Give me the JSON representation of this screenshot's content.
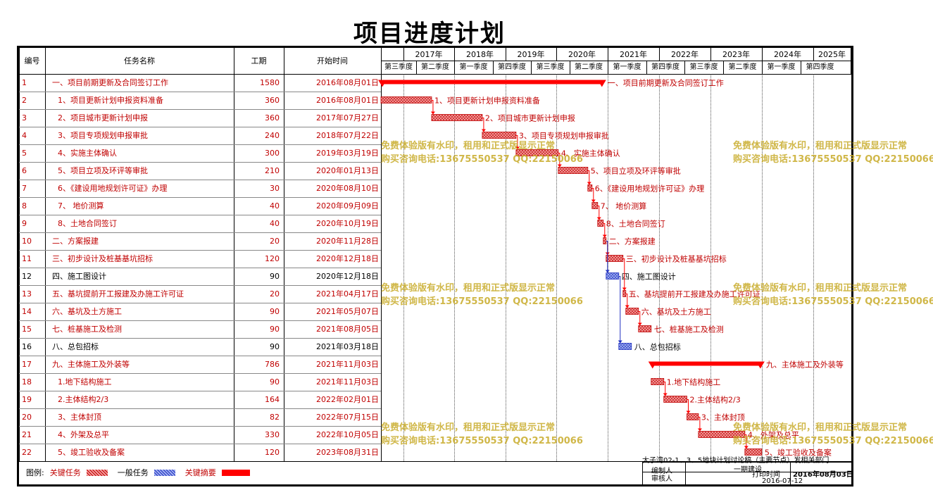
{
  "title": "项目进度计划",
  "headers": {
    "id": "编号",
    "name": "任务名称",
    "duration": "工期",
    "start": "开始时间"
  },
  "years": [
    "2017年",
    "2018年",
    "2019年",
    "2020年",
    "2021年",
    "2022年",
    "2023年",
    "2024年",
    "2025年"
  ],
  "quarters": [
    "第三季度",
    "第二季度",
    "第一季度",
    "第四季度",
    "第三季度",
    "第二季度",
    "第一季度",
    "第四季度",
    "第三季度",
    "第二季度",
    "第一季度",
    "第四季度"
  ],
  "tasks": [
    {
      "id": "1",
      "name": "一、项目前期更新及合同签订工作",
      "duration": "1580",
      "start": "2016年08月01日",
      "type": "summary",
      "bar_label": "一、项目前期更新及合同签订工作"
    },
    {
      "id": "2",
      "name": "1、项目更新计划申报资料准备",
      "duration": "360",
      "start": "2016年08月01日",
      "type": "critical",
      "bar_label": "1、项目更新计划申报资料准备"
    },
    {
      "id": "3",
      "name": "2、项目城市更新计划申报",
      "duration": "360",
      "start": "2017年07月27日",
      "type": "critical",
      "bar_label": "2、项目城市更新计划申报"
    },
    {
      "id": "4",
      "name": "3、项目专项规划申报审批",
      "duration": "240",
      "start": "2018年07月22日",
      "type": "critical",
      "bar_label": "3、项目专项规划申报审批"
    },
    {
      "id": "5",
      "name": "4、实施主体确认",
      "duration": "300",
      "start": "2019年03月19日",
      "type": "critical",
      "bar_label": "4、实施主体确认"
    },
    {
      "id": "6",
      "name": "5、项目立项及环评等审批",
      "duration": "210",
      "start": "2020年01月13日",
      "type": "critical",
      "bar_label": "5、项目立项及环评等审批"
    },
    {
      "id": "7",
      "name": "6、《建设用地规划许可证》办理",
      "duration": "30",
      "start": "2020年08月10日",
      "type": "critical",
      "bar_label": "6、《建设用地规划许可证》办理"
    },
    {
      "id": "8",
      "name": "7、  地价测算",
      "duration": "40",
      "start": "2020年09月09日",
      "type": "critical",
      "bar_label": "7、  地价测算"
    },
    {
      "id": "9",
      "name": "8、土地合同签订",
      "duration": "40",
      "start": "2020年10月19日",
      "type": "critical",
      "bar_label": "8、土地合同签订"
    },
    {
      "id": "10",
      "name": "二、方案报建",
      "duration": "20",
      "start": "2020年11月28日",
      "type": "critical",
      "bar_label": "二、方案报建"
    },
    {
      "id": "11",
      "name": "三、初步设计及桩基基坑招标",
      "duration": "120",
      "start": "2020年12月18日",
      "type": "critical",
      "bar_label": "三、初步设计及桩基基坑招标"
    },
    {
      "id": "12",
      "name": "四、施工图设计",
      "duration": "90",
      "start": "2020年12月18日",
      "type": "normal",
      "bar_label": "四、施工图设计"
    },
    {
      "id": "13",
      "name": "五、基坑提前开工报建及办施工许可证",
      "duration": "20",
      "start": "2021年04月17日",
      "type": "critical",
      "bar_label": "五、基坑提前开工报建及办施工许可证"
    },
    {
      "id": "14",
      "name": "六、基坑及土方施工",
      "duration": "90",
      "start": "2021年05月07日",
      "type": "critical",
      "bar_label": "六、基坑及土方施工"
    },
    {
      "id": "15",
      "name": "七、桩基施工及检测",
      "duration": "90",
      "start": "2021年08月05日",
      "type": "critical",
      "bar_label": "七、桩基施工及检测"
    },
    {
      "id": "16",
      "name": "八、总包招标",
      "duration": "90",
      "start": "2021年03月18日",
      "type": "normal",
      "bar_label": "八、总包招标"
    },
    {
      "id": "17",
      "name": "九、主体施工及外装等",
      "duration": "786",
      "start": "2021年11月03日",
      "type": "summary",
      "bar_label": "九、主体施工及外装等"
    },
    {
      "id": "18",
      "name": "1.地下结构施工",
      "duration": "90",
      "start": "2021年11月03日",
      "type": "critical",
      "bar_label": "1.地下结构施工"
    },
    {
      "id": "19",
      "name": "2.主体结构2/3",
      "duration": "164",
      "start": "2022年02月01日",
      "type": "critical",
      "bar_label": "2.主体结构2/3"
    },
    {
      "id": "20",
      "name": "3、主体封顶",
      "duration": "82",
      "start": "2022年07月15日",
      "type": "critical",
      "bar_label": "3、主体封顶"
    },
    {
      "id": "21",
      "name": "4、外架及总平",
      "duration": "330",
      "start": "2022年10月05日",
      "type": "critical",
      "bar_label": "4、外架及总平"
    },
    {
      "id": "22",
      "name": "5、竣工验收及备案",
      "duration": "120",
      "start": "2023年08月31日",
      "type": "critical",
      "bar_label": "5、竣工验收及备案"
    }
  ],
  "legend": {
    "label": "图例:",
    "critical": "关键任务",
    "normal": "一般任务",
    "summary": "关键摘要"
  },
  "watermark": {
    "line1": "免费体验版有水印，租用和正式版显示正常",
    "line2": "购买咨询电话:13675550537 QQ:22150066"
  },
  "info_box": {
    "project": "大子湾02-1、3、5地块计划讨论稿（主要节点）发相关部门",
    "editor": "编制人",
    "reviewer": "审核人",
    "unit_label": "一期建设",
    "date_label": "打印时间",
    "date": "2016年08月03日",
    "date2": "2016-07-12"
  },
  "colors": {
    "critical": "#e06060",
    "critical_border": "#c00000",
    "normal": "#6070d0",
    "summary": "#ff0000",
    "link": "#ff0000",
    "blue_link": "#2030c0"
  }
}
